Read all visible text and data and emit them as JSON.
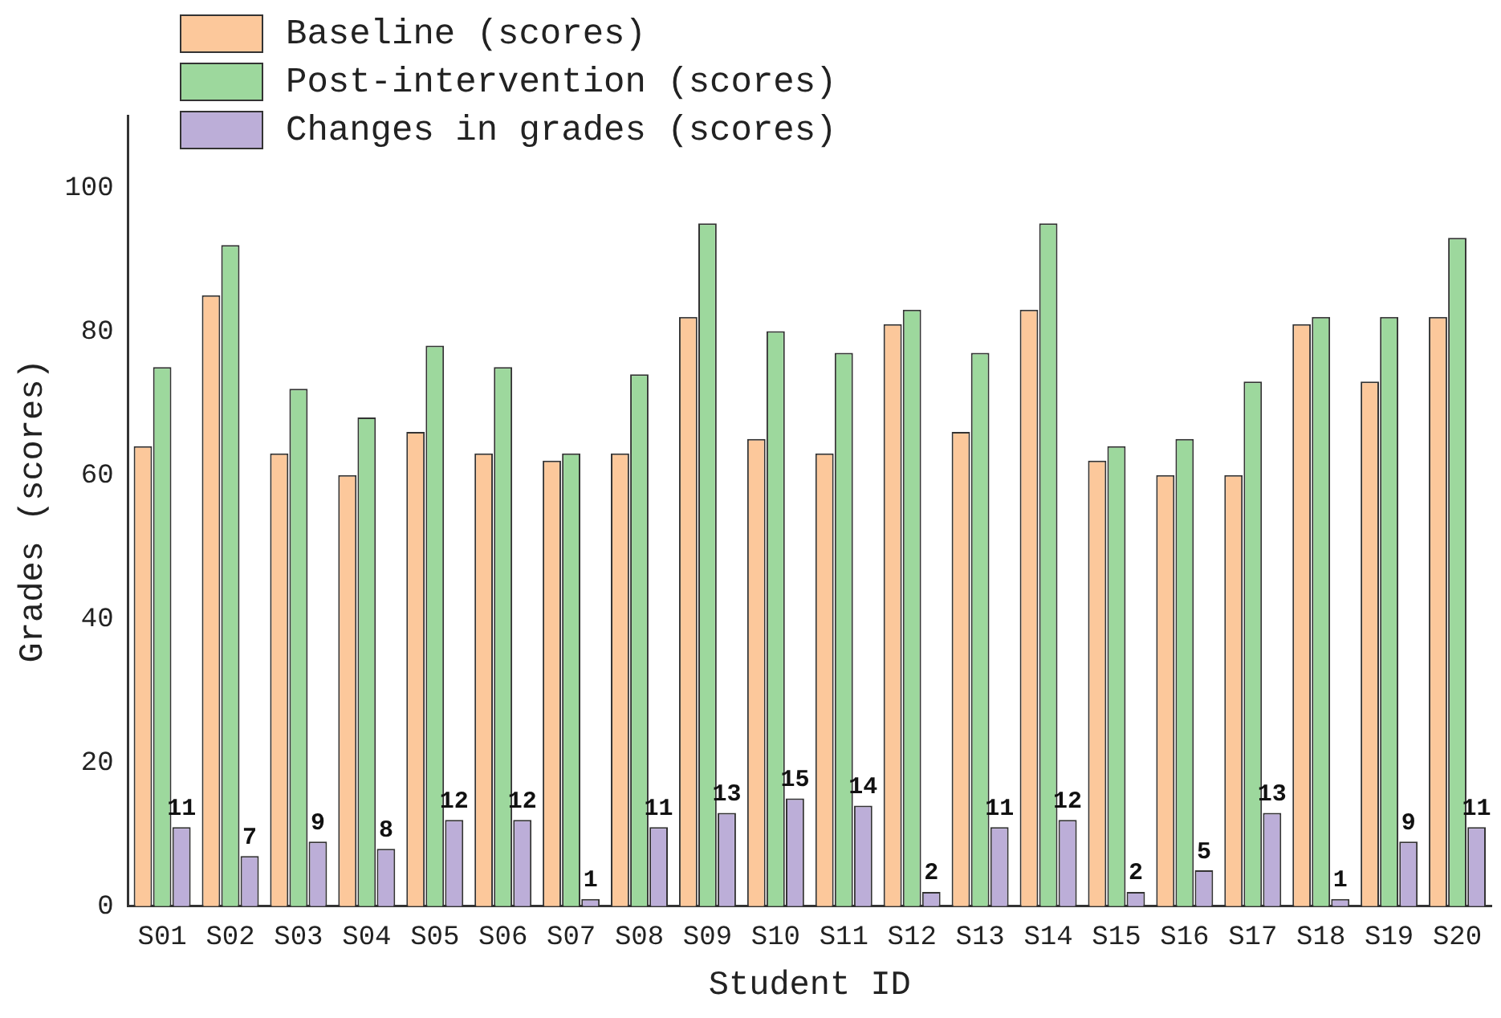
{
  "chart_data": {
    "type": "bar",
    "xlabel": "Student ID",
    "ylabel": "Grades (scores)",
    "categories": [
      "S01",
      "S02",
      "S03",
      "S04",
      "S05",
      "S06",
      "S07",
      "S08",
      "S09",
      "S10",
      "S11",
      "S12",
      "S13",
      "S14",
      "S15",
      "S16",
      "S17",
      "S18",
      "S19",
      "S20"
    ],
    "series": [
      {
        "name": "Baseline (scores)",
        "color": "#fcc89b",
        "values": [
          64,
          85,
          63,
          60,
          66,
          63,
          62,
          63,
          82,
          65,
          63,
          81,
          66,
          83,
          62,
          60,
          60,
          81,
          73,
          82
        ]
      },
      {
        "name": "Post-intervention (scores)",
        "color": "#9dd89d",
        "values": [
          75,
          92,
          72,
          68,
          78,
          75,
          63,
          74,
          95,
          80,
          77,
          83,
          77,
          95,
          64,
          65,
          73,
          82,
          82,
          93
        ]
      },
      {
        "name": "Changes in grades (scores)",
        "color": "#bcaed8",
        "values": [
          11,
          7,
          9,
          8,
          12,
          12,
          1,
          11,
          13,
          15,
          14,
          2,
          11,
          12,
          2,
          5,
          13,
          1,
          9,
          11
        ],
        "value_labels": [
          "11",
          "7",
          "9",
          "8",
          "12",
          "12",
          "1",
          "11",
          "13",
          "15",
          "14",
          "2",
          "11",
          "12",
          "2",
          "5",
          "13",
          "1",
          "9",
          "11"
        ]
      }
    ],
    "ylim": [
      0,
      110
    ],
    "yticks": [
      0,
      20,
      40,
      60,
      80,
      100
    ],
    "grid": false,
    "legend": "top left"
  }
}
